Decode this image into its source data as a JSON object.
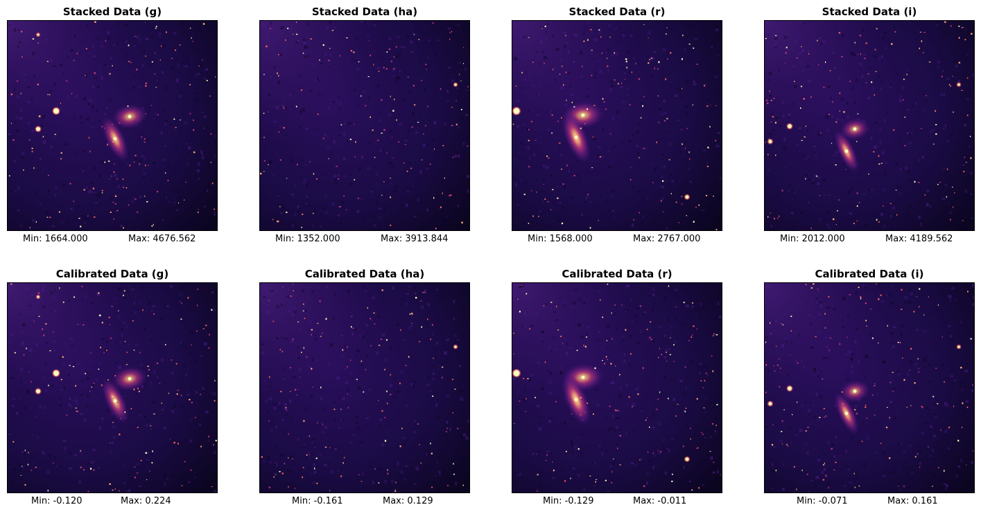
{
  "figure": {
    "panels": [
      {
        "title": "Stacked Data (g)",
        "min_label": "Min: 1664.000",
        "max_label": "Max: 4676.562",
        "band": "g",
        "row": 0,
        "col": 0
      },
      {
        "title": "Stacked Data (ha)",
        "min_label": "Min: 1352.000",
        "max_label": "Max: 3913.844",
        "band": "ha",
        "row": 0,
        "col": 1
      },
      {
        "title": "Stacked Data (r)",
        "min_label": "Min: 1568.000",
        "max_label": "Max: 2767.000",
        "band": "r",
        "row": 0,
        "col": 2
      },
      {
        "title": "Stacked Data (i)",
        "min_label": "Min: 2012.000",
        "max_label": "Max: 4189.562",
        "band": "i",
        "row": 0,
        "col": 3
      },
      {
        "title": "Calibrated Data (g)",
        "min_label": "Min: -0.120",
        "max_label": "Max: 0.224",
        "band": "g",
        "row": 1,
        "col": 0
      },
      {
        "title": "Calibrated Data (ha)",
        "min_label": "Min: -0.161",
        "max_label": "Max: 0.129",
        "band": "ha",
        "row": 1,
        "col": 1
      },
      {
        "title": "Calibrated Data (r)",
        "min_label": "Min: -0.129",
        "max_label": "Max: -0.011",
        "band": "r",
        "row": 1,
        "col": 2
      },
      {
        "title": "Calibrated Data (i)",
        "min_label": "Min: -0.071",
        "max_label": "Max: 0.161",
        "band": "i",
        "row": 1,
        "col": 3
      }
    ],
    "colormap": [
      "#000004",
      "#1d1147",
      "#3b0f70",
      "#721f81",
      "#b73779",
      "#f1605d",
      "#feb078",
      "#fcfdbf"
    ]
  }
}
